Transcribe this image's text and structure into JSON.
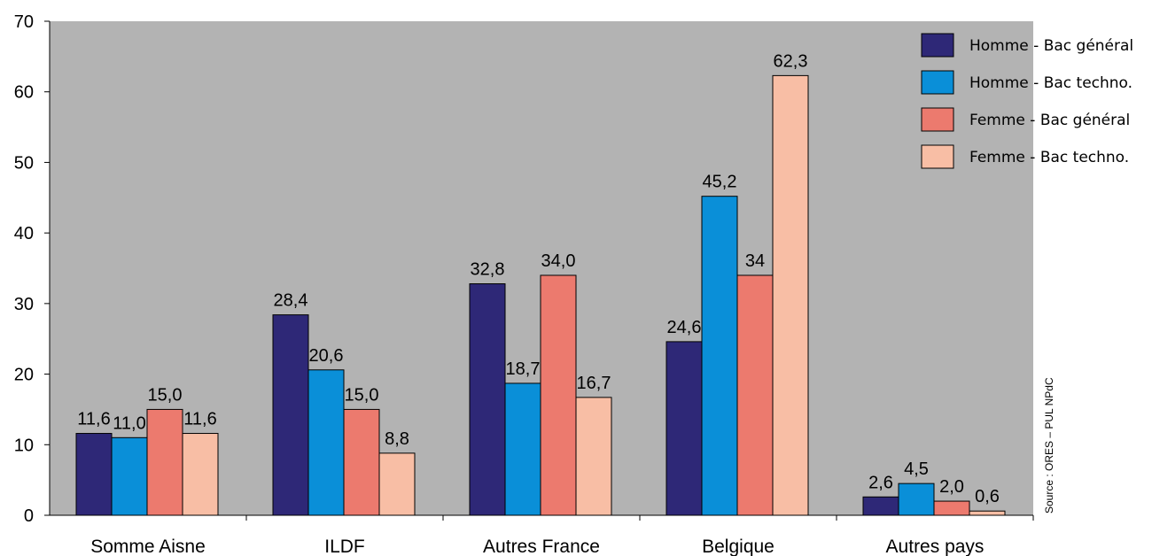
{
  "chart_data": {
    "type": "bar",
    "categories": [
      "Somme Aisne",
      "ILDF",
      "Autres France",
      "Belgique",
      "Autres pays"
    ],
    "series": [
      {
        "name": "Homme - Bac général",
        "color": "#2e2877",
        "values": [
          11.6,
          28.4,
          32.8,
          24.6,
          2.6
        ],
        "labels": [
          "11,6",
          "28,4",
          "32,8",
          "24,6",
          "2,6"
        ]
      },
      {
        "name": "Homme - Bac techno.",
        "color": "#0a8fd8",
        "values": [
          11.0,
          20.6,
          18.7,
          45.2,
          4.5
        ],
        "labels": [
          "11,0",
          "20,6",
          "18,7",
          "45,2",
          "4,5"
        ]
      },
      {
        "name": "Femme - Bac général",
        "color": "#ec7a6e",
        "values": [
          15.0,
          15.0,
          34.0,
          34,
          2.0
        ],
        "labels": [
          "15,0",
          "15,0",
          "34,0",
          "34",
          "2,0"
        ]
      },
      {
        "name": "Femme - Bac techno.",
        "color": "#f8bea5",
        "values": [
          11.6,
          8.8,
          16.7,
          62.3,
          0.6
        ],
        "labels": [
          "11,6",
          "8,8",
          "16,7",
          "62,3",
          "0,6"
        ]
      }
    ],
    "ylim": [
      0,
      70
    ],
    "yticks": [
      0,
      10,
      20,
      30,
      40,
      50,
      60,
      70
    ],
    "grid": false,
    "plot_background": "#b3b3b3",
    "legend_position": "top-right",
    "source_note": "Source : ORES – PUL NPdC"
  }
}
